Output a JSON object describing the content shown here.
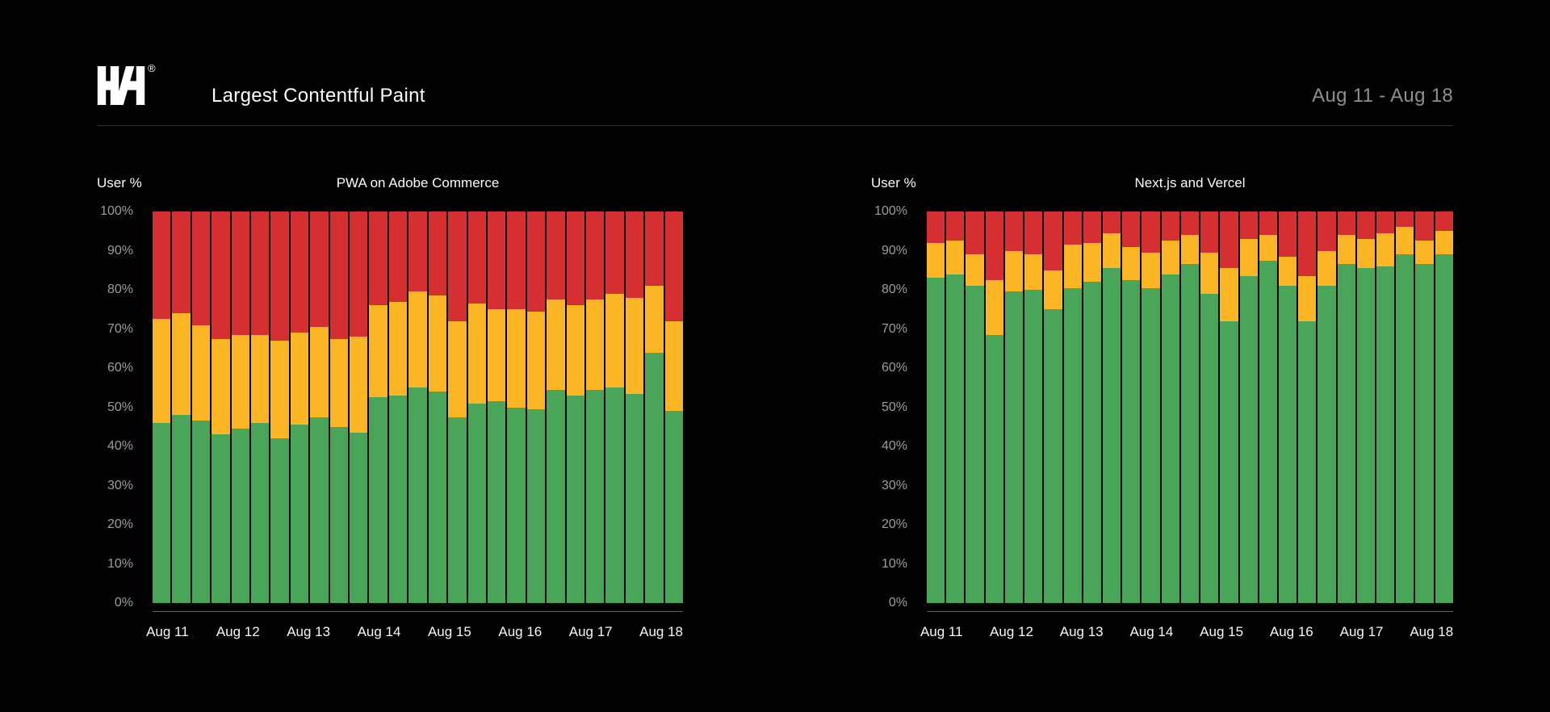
{
  "header": {
    "logo": "HH",
    "registered_mark": "®",
    "title": "Largest Contentful Paint",
    "date_range": "Aug 11 - Aug 18"
  },
  "colors": {
    "background": "#020202",
    "green": "#49a558",
    "yellow": "#fdb623",
    "red": "#d62f31",
    "tick_gray": "#9c9c9c",
    "date_gray": "#8f8f8f",
    "axis_line": "#616161"
  },
  "chart_data": [
    {
      "type": "bar",
      "stacked": true,
      "title": "PWA on Adobe Commerce",
      "ylabel": "User %",
      "xlabel": "",
      "ylim": [
        0,
        100
      ],
      "grid": false,
      "legend": "none",
      "y_tick_labels": [
        "0%",
        "10%",
        "20%",
        "30%",
        "40%",
        "50%",
        "60%",
        "70%",
        "80%",
        "90%",
        "100%"
      ],
      "x_tick_labels": [
        "Aug 11",
        "Aug 12",
        "Aug 13",
        "Aug 14",
        "Aug 15",
        "Aug 16",
        "Aug 17",
        "Aug 18"
      ],
      "bars_per_day": "approx. 4 (6-hour buckets), 27 bars total",
      "series": [
        {
          "name": "green",
          "color": "#49a558",
          "values": [
            46,
            48,
            46.5,
            43,
            44.5,
            46,
            42,
            45.5,
            47.5,
            45,
            43.5,
            52.5,
            53,
            55,
            54,
            47.5,
            51,
            51.5,
            50,
            49.5,
            54.5,
            53,
            54.5,
            55,
            53.5,
            64,
            49
          ]
        },
        {
          "name": "yellow",
          "color": "#fdb623",
          "values": [
            26.5,
            26,
            24.5,
            24.5,
            24,
            22.5,
            25,
            23.5,
            23,
            22.5,
            24.5,
            23.5,
            24,
            24.5,
            24.5,
            24.5,
            25.5,
            23.5,
            25,
            25,
            23,
            23,
            23,
            24,
            24.5,
            17,
            23
          ]
        },
        {
          "name": "red",
          "color": "#d62f31",
          "values": [
            27.5,
            26,
            29,
            32.5,
            31.5,
            31.5,
            33,
            31,
            29.5,
            32.5,
            32,
            24,
            23,
            20.5,
            21.5,
            28,
            23.5,
            25,
            25,
            25.5,
            22.5,
            24,
            22.5,
            21,
            22,
            19,
            28
          ]
        }
      ]
    },
    {
      "type": "bar",
      "stacked": true,
      "title": "Next.js and Vercel",
      "ylabel": "User %",
      "xlabel": "",
      "ylim": [
        0,
        100
      ],
      "grid": false,
      "legend": "none",
      "y_tick_labels": [
        "0%",
        "10%",
        "20%",
        "30%",
        "40%",
        "50%",
        "60%",
        "70%",
        "80%",
        "90%",
        "100%"
      ],
      "x_tick_labels": [
        "Aug 11",
        "Aug 12",
        "Aug 13",
        "Aug 14",
        "Aug 15",
        "Aug 16",
        "Aug 17",
        "Aug 18"
      ],
      "bars_per_day": "approx. 4 (6-hour buckets), 27 bars total",
      "series": [
        {
          "name": "green",
          "color": "#49a558",
          "values": [
            83,
            84,
            81,
            68.5,
            79.5,
            80,
            75,
            80.5,
            82,
            85.5,
            82.5,
            80.5,
            84,
            86.5,
            79,
            72,
            83.5,
            87.5,
            81,
            72,
            81,
            86.5,
            85.5,
            86,
            89,
            86.5,
            89
          ]
        },
        {
          "name": "yellow",
          "color": "#fdb623",
          "values": [
            9,
            8.5,
            8,
            14,
            10.5,
            9,
            10,
            11,
            10,
            9,
            8.5,
            9,
            8.5,
            7.5,
            10.5,
            13.5,
            9.5,
            6.5,
            7.5,
            11.5,
            9,
            7.5,
            7.5,
            8.5,
            7,
            6,
            6
          ]
        },
        {
          "name": "red",
          "color": "#d62f31",
          "values": [
            8,
            7.5,
            11,
            17.5,
            10,
            11,
            15,
            8.5,
            8,
            5.5,
            9,
            10.5,
            7.5,
            6,
            10.5,
            14.5,
            7,
            6,
            11.5,
            16.5,
            10,
            6,
            7,
            5.5,
            4,
            7.5,
            5
          ]
        }
      ]
    }
  ]
}
